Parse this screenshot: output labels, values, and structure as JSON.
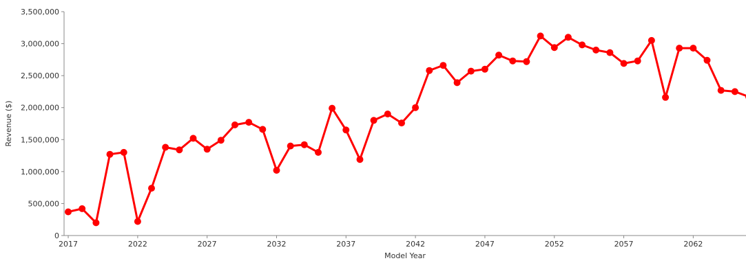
{
  "chart_data": {
    "type": "line",
    "title": "",
    "xlabel": "Model Year",
    "ylabel": "Revenue ($)",
    "xlim": [
      2016.7,
      2065.8
    ],
    "ylim": [
      0,
      3500000
    ],
    "x_ticks": [
      2017,
      2022,
      2027,
      2032,
      2037,
      2042,
      2047,
      2052,
      2057,
      2062
    ],
    "y_ticks": [
      0,
      500000,
      1000000,
      1500000,
      2000000,
      2500000,
      3000000,
      3500000
    ],
    "x_tick_labels": [
      "2017",
      "2022",
      "2027",
      "2032",
      "2037",
      "2042",
      "2047",
      "2052",
      "2057",
      "2062"
    ],
    "y_tick_labels": [
      "0",
      "500,000",
      "1,000,000",
      "1,500,000",
      "2,000,000",
      "2,500,000",
      "3,000,000",
      "3,500,000"
    ],
    "grid": false,
    "legend": "none",
    "series": [
      {
        "color": "#ff0000",
        "x": [
          2017,
          2018,
          2019,
          2020,
          2021,
          2022,
          2023,
          2024,
          2025,
          2026,
          2027,
          2028,
          2029,
          2030,
          2031,
          2032,
          2033,
          2034,
          2035,
          2036,
          2037,
          2038,
          2039,
          2040,
          2041,
          2042,
          2043,
          2044,
          2045,
          2046,
          2047,
          2048,
          2049,
          2050,
          2051,
          2052,
          2053,
          2054,
          2055,
          2056,
          2057,
          2058,
          2059,
          2060,
          2061,
          2062,
          2063,
          2064,
          2065,
          2066
        ],
        "values": [
          370000,
          420000,
          200000,
          1270000,
          1300000,
          220000,
          740000,
          1380000,
          1340000,
          1520000,
          1350000,
          1490000,
          1730000,
          1770000,
          1660000,
          1020000,
          1400000,
          1420000,
          1300000,
          1990000,
          1650000,
          1190000,
          1800000,
          1900000,
          1760000,
          2000000,
          2580000,
          2660000,
          2390000,
          2570000,
          2600000,
          2820000,
          2730000,
          2720000,
          3120000,
          2940000,
          3100000,
          2980000,
          2900000,
          2860000,
          2690000,
          2730000,
          3050000,
          2160000,
          2930000,
          2930000,
          2740000,
          2270000,
          2250000,
          2170000
        ]
      }
    ]
  }
}
